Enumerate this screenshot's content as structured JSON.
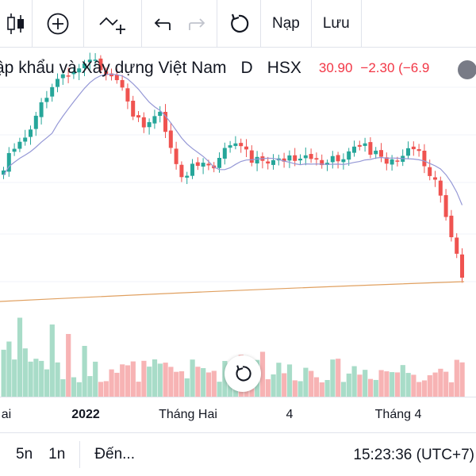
{
  "toolbar": {
    "icons": [
      "candles-icon",
      "add-indicator-icon",
      "drawing-tool-icon",
      "undo-icon",
      "redo-icon",
      "reset-icon"
    ],
    "load_label": "Nạp",
    "save_label": "Lưu"
  },
  "legend": {
    "title": "ập khẩu và Xây dựng Việt Nam",
    "interval": "D",
    "exchange": "HSX",
    "last_price": "30.90",
    "change": "−2.30 (−6.9",
    "more_icon": "ellipsis-icon"
  },
  "colors": {
    "up": "#26a69a",
    "down": "#ef5350",
    "ma": "#9598d6",
    "long_ma": "#e0a060",
    "vol_up": "#a8dcc8",
    "vol_down": "#f7b3b4"
  },
  "time_axis": {
    "labels": [
      {
        "text": "ai",
        "bold": false
      },
      {
        "text": "2022",
        "bold": true
      },
      {
        "text": "Tháng Hai",
        "bold": false
      },
      {
        "text": "4",
        "bold": false
      },
      {
        "text": "Tháng 4",
        "bold": false
      }
    ]
  },
  "bottom_bar": {
    "range_5d": "5n",
    "range_1m": "1n",
    "goto_label": "Đến...",
    "clock": "15:23:36 (UTC+7)"
  }
}
